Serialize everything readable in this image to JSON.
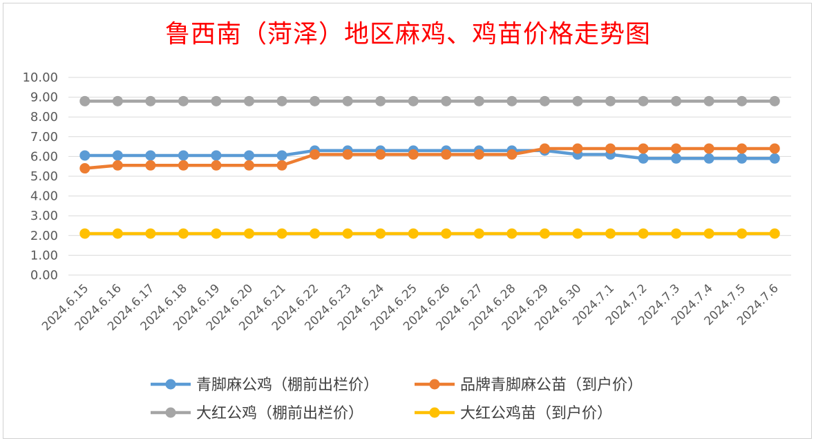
{
  "chart_data": {
    "type": "line",
    "title": "鲁西南（菏泽）地区麻鸡、鸡苗价格走势图",
    "ylim": [
      0,
      10
    ],
    "yticks": [
      "0.00",
      "1.00",
      "2.00",
      "3.00",
      "4.00",
      "5.00",
      "6.00",
      "7.00",
      "8.00",
      "9.00",
      "10.00"
    ],
    "grid": true,
    "legend_position": "bottom",
    "categories": [
      "2024.6.15",
      "2024.6.16",
      "2024.6.17",
      "2024.6.18",
      "2024.6.19",
      "2024.6.20",
      "2024.6.21",
      "2024.6.22",
      "2024.6.23",
      "2024.6.24",
      "2024.6.25",
      "2024.6.26",
      "2024.6.27",
      "2024.6.28",
      "2024.6.29",
      "2024.6.30",
      "2024.7.1",
      "2024.7.2",
      "2024.7.3",
      "2024.7.4",
      "2024.7.5",
      "2024.7.6"
    ],
    "series": [
      {
        "name": "青脚麻公鸡（棚前出栏价）",
        "color": "#5b9bd5",
        "values": [
          6.05,
          6.05,
          6.05,
          6.05,
          6.05,
          6.05,
          6.05,
          6.3,
          6.3,
          6.3,
          6.3,
          6.3,
          6.3,
          6.3,
          6.3,
          6.1,
          6.1,
          5.9,
          5.9,
          5.9,
          5.9,
          5.9
        ]
      },
      {
        "name": "品牌青脚麻公苗（到户价）",
        "color": "#ed7d31",
        "values": [
          5.4,
          5.55,
          5.55,
          5.55,
          5.55,
          5.55,
          5.55,
          6.1,
          6.1,
          6.1,
          6.1,
          6.1,
          6.1,
          6.1,
          6.4,
          6.4,
          6.4,
          6.4,
          6.4,
          6.4,
          6.4,
          6.4
        ]
      },
      {
        "name": "大红公鸡（棚前出栏价）",
        "color": "#a5a5a5",
        "values": [
          8.8,
          8.8,
          8.8,
          8.8,
          8.8,
          8.8,
          8.8,
          8.8,
          8.8,
          8.8,
          8.8,
          8.8,
          8.8,
          8.8,
          8.8,
          8.8,
          8.8,
          8.8,
          8.8,
          8.8,
          8.8,
          8.8
        ]
      },
      {
        "name": "大红公鸡苗（到户价）",
        "color": "#ffc000",
        "values": [
          2.1,
          2.1,
          2.1,
          2.1,
          2.1,
          2.1,
          2.1,
          2.1,
          2.1,
          2.1,
          2.1,
          2.1,
          2.1,
          2.1,
          2.1,
          2.1,
          2.1,
          2.1,
          2.1,
          2.1,
          2.1,
          2.1
        ]
      }
    ]
  }
}
